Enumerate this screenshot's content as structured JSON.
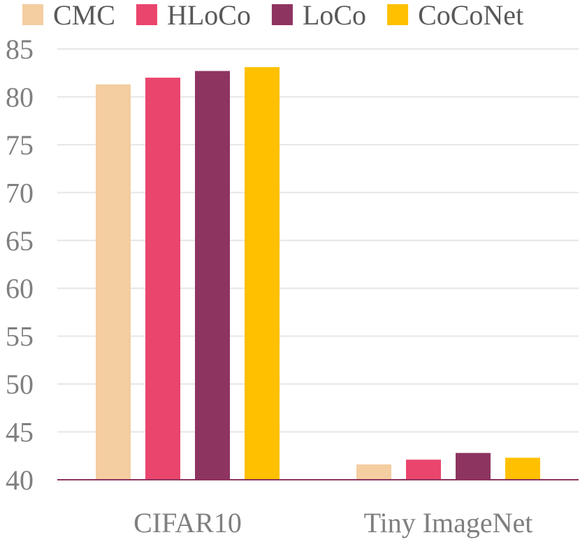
{
  "chart_data": {
    "type": "bar",
    "categories": [
      "CIFAR10",
      "Tiny ImageNet"
    ],
    "series": [
      {
        "name": "CMC",
        "color": "#f4cda0",
        "values": [
          81.3,
          41.6
        ]
      },
      {
        "name": "HLoCo",
        "color": "#ea456d",
        "values": [
          82.0,
          42.1
        ]
      },
      {
        "name": "LoCo",
        "color": "#8e3461",
        "values": [
          82.7,
          42.8
        ]
      },
      {
        "name": "CoCoNet",
        "color": "#ffc000",
        "values": [
          83.1,
          42.3
        ]
      }
    ],
    "yticks": [
      40,
      45,
      50,
      55,
      60,
      65,
      70,
      75,
      80,
      85
    ],
    "ylim": [
      40,
      85
    ],
    "grid": true,
    "legend_position": "top"
  }
}
